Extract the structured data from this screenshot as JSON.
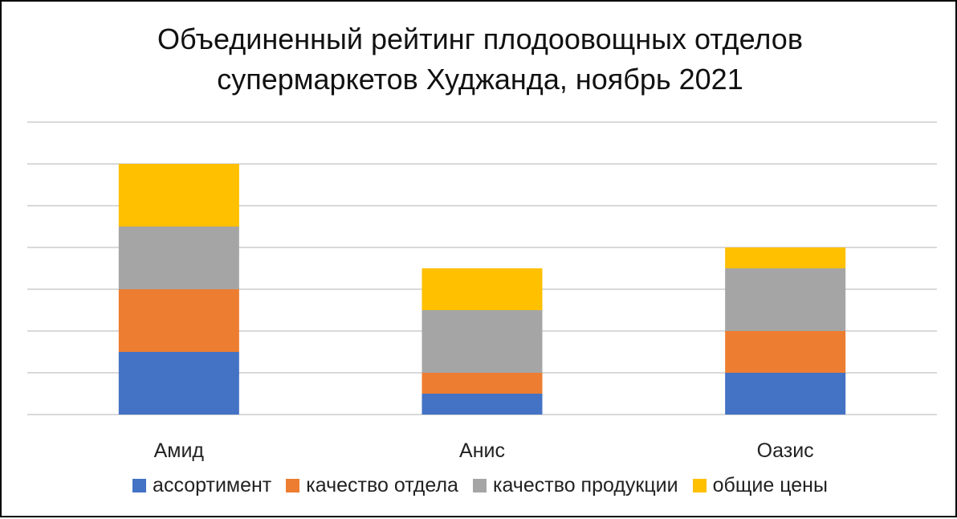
{
  "chart_data": {
    "type": "bar",
    "stacked": true,
    "title": "Объединенный рейтинг плодоовощных отделов супермаркетов Худжанда, ноябрь 2021",
    "title_lines": [
      "Объединенный рейтинг плодоовощных отделов",
      "супермаркетов Худжанда, ноябрь 2021"
    ],
    "categories": [
      "Амид",
      "Анис",
      "Оазис"
    ],
    "series": [
      {
        "name": "ассортимент",
        "color": "#4472c4",
        "values": [
          3,
          1,
          2
        ]
      },
      {
        "name": "качество отдела",
        "color": "#ed7d31",
        "values": [
          3,
          1,
          2
        ]
      },
      {
        "name": "качество продукции",
        "color": "#a5a5a5",
        "values": [
          3,
          3,
          3
        ]
      },
      {
        "name": "общие цены",
        "color": "#ffc000",
        "values": [
          3,
          2,
          1
        ]
      }
    ],
    "ylim": [
      0,
      14
    ],
    "grid": true,
    "axis_ticks_visible": false,
    "legend_position": "bottom",
    "xlabel": "",
    "ylabel": ""
  }
}
